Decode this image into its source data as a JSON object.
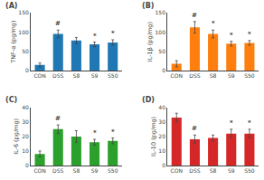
{
  "chart_data": [
    {
      "type": "bar",
      "title": "(A)",
      "ylabel": "TNF-α (pg/mg)",
      "categories": [
        "CON",
        "DSS",
        "S8",
        "S9",
        "S50"
      ],
      "values": [
        15,
        95,
        78,
        68,
        73
      ],
      "errors": [
        5,
        10,
        8,
        6,
        7
      ],
      "annotations": [
        {
          "category": "DSS",
          "text": "#"
        },
        {
          "category": "S9",
          "text": "*"
        },
        {
          "category": "S50",
          "text": "*"
        }
      ],
      "ylim": [
        0,
        150
      ],
      "yticks": [
        0,
        50,
        100,
        150
      ],
      "grid": false
    },
    {
      "type": "bar",
      "title": "(B)",
      "ylabel": "IL-1β (pg/mg)",
      "categories": [
        "CON",
        "DSS",
        "S8",
        "S9",
        "S50"
      ],
      "values": [
        18,
        112,
        95,
        70,
        72
      ],
      "errors": [
        8,
        15,
        10,
        6,
        6
      ],
      "annotations": [
        {
          "category": "DSS",
          "text": "#"
        },
        {
          "category": "S8",
          "text": "*"
        },
        {
          "category": "S9",
          "text": "*"
        },
        {
          "category": "S50",
          "text": "*"
        }
      ],
      "ylim": [
        0,
        150
      ],
      "yticks": [
        0,
        50,
        100,
        150
      ],
      "grid": false
    },
    {
      "type": "bar",
      "title": "(C)",
      "ylabel": "IL-6 (pg/mg)",
      "categories": [
        "CON",
        "DSS",
        "S8",
        "S9",
        "S50"
      ],
      "values": [
        8,
        25,
        20,
        16,
        17
      ],
      "errors": [
        2,
        3,
        4,
        2,
        2
      ],
      "annotations": [
        {
          "category": "DSS",
          "text": "#"
        },
        {
          "category": "S9",
          "text": "*"
        },
        {
          "category": "S50",
          "text": "*"
        }
      ],
      "ylim": [
        0,
        40
      ],
      "yticks": [
        0,
        10,
        20,
        30,
        40
      ],
      "grid": false
    },
    {
      "type": "bar",
      "title": "(D)",
      "ylabel": "IL-10 (pg/mg)",
      "categories": [
        "CON",
        "DSS",
        "S8",
        "S9",
        "S50"
      ],
      "values": [
        33,
        18,
        19,
        22,
        22
      ],
      "errors": [
        3,
        3,
        2,
        3,
        3
      ],
      "annotations": [
        {
          "category": "DSS",
          "text": "#"
        },
        {
          "category": "S9",
          "text": "*"
        },
        {
          "category": "S50",
          "text": "*"
        }
      ],
      "ylim": [
        0,
        40
      ],
      "yticks": [
        0,
        10,
        20,
        30,
        40
      ],
      "grid": false
    }
  ]
}
